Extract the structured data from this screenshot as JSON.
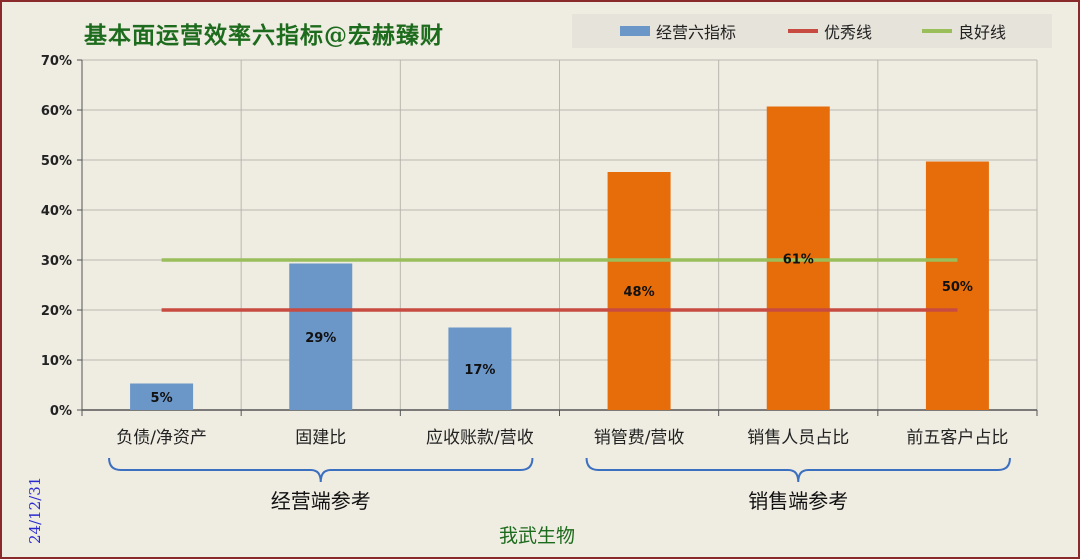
{
  "title": "基本面运营效率六指标@宏赫臻财",
  "date_stamp": "24/12/31",
  "author": "我武生物",
  "colors": {
    "bar_blue": "#6b96c8",
    "bar_orange": "#e66d0a",
    "line_red": "#c84b42",
    "line_green": "#9abf5a",
    "grid": "#b8b8b0"
  },
  "legend": [
    {
      "label": "经营六指标",
      "kind": "box",
      "color": "#6b96c8"
    },
    {
      "label": "优秀线",
      "kind": "line",
      "color": "#c84b42"
    },
    {
      "label": "良好线",
      "kind": "line",
      "color": "#9abf5a"
    }
  ],
  "groups": [
    {
      "label": "经营端参考",
      "from": 0,
      "to": 2
    },
    {
      "label": "销售端参考",
      "from": 3,
      "to": 5
    }
  ],
  "chart_data": {
    "type": "bar",
    "title": "基本面运营效率六指标@宏赫臻财",
    "categories": [
      "负债/净资产",
      "固建比",
      "应收账款/营收",
      "销管费/营收",
      "销售人员占比",
      "前五客户占比"
    ],
    "series": [
      {
        "name": "经营六指标",
        "values": [
          5.3,
          29.3,
          16.5,
          47.6,
          60.7,
          49.7
        ],
        "labels": [
          "5%",
          "29%",
          "17%",
          "48%",
          "61%",
          "50%"
        ],
        "colors": [
          "#6b96c8",
          "#6b96c8",
          "#6b96c8",
          "#e66d0a",
          "#e66d0a",
          "#e66d0a"
        ]
      },
      {
        "name": "优秀线",
        "values": [
          20,
          20,
          20,
          20,
          20,
          20
        ]
      },
      {
        "name": "良好线",
        "values": [
          30,
          30,
          30,
          30,
          30,
          30
        ]
      }
    ],
    "yticks": [
      "0%",
      "10%",
      "20%",
      "30%",
      "40%",
      "50%",
      "60%",
      "70%"
    ],
    "ylim": [
      0,
      70
    ],
    "grid": true,
    "legend_position": "top-right"
  }
}
